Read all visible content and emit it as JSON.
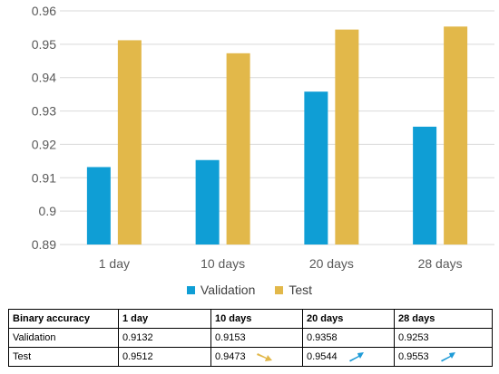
{
  "chart_data": {
    "type": "bar",
    "categories": [
      "1 day",
      "10 days",
      "20 days",
      "28 days"
    ],
    "series": [
      {
        "name": "Validation",
        "color": "#0f9ed5",
        "values": [
          0.9132,
          0.9153,
          0.9358,
          0.9253
        ]
      },
      {
        "name": "Test",
        "color": "#e2b84a",
        "values": [
          0.9512,
          0.9473,
          0.9544,
          0.9553
        ]
      }
    ],
    "ylim": [
      0.89,
      0.96
    ],
    "yticks": [
      "0.89",
      "0.9",
      "0.91",
      "0.92",
      "0.93",
      "0.94",
      "0.95",
      "0.96"
    ],
    "grid": true,
    "legend": "bottom"
  },
  "table": {
    "header": [
      "Binary accuracy",
      "1 day",
      "10 days",
      "20 days",
      "28 days"
    ],
    "rows": [
      {
        "label": "Validation",
        "cells": [
          "0.9132",
          "0.9153",
          "0.9358",
          "0.9253"
        ]
      },
      {
        "label": "Test",
        "cells": [
          "0.9512",
          "0.9473",
          "0.9544",
          "0.9553"
        ],
        "trend_icons": [
          "",
          "arrow-down-right-icon",
          "arrow-up-right-icon",
          "arrow-up-right-icon"
        ]
      }
    ]
  },
  "colors": {
    "down_arrow": "#e2b84a",
    "up_arrow": "#1f9bd7"
  }
}
